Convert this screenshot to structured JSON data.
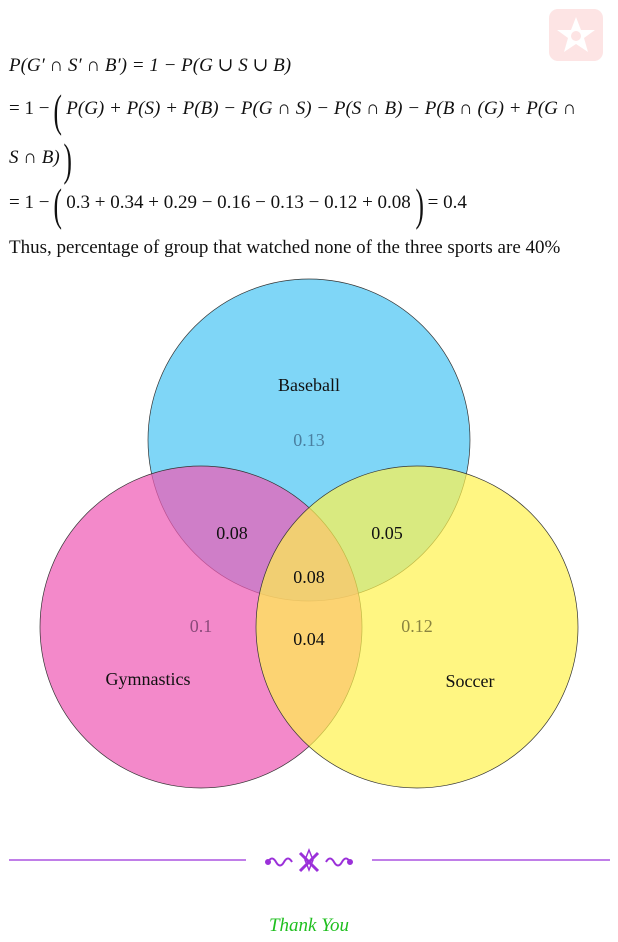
{
  "solution": {
    "line1": "P(G′ ∩ S′ ∩ B′) = 1 − P(G ∪ S ∪ B)",
    "line2_prefix": "= 1 −",
    "line2_body": "P(G) + P(S) + P(B) − P(G ∩ S) − P(S ∩ B) − P(B ∩ (G) + P(G ∩",
    "line3_body": "S ∩ B)",
    "line4_prefix": "= 1 −",
    "line4_body": "0.3 + 0.34 + 0.29 − 0.16 − 0.13 − 0.12 + 0.08",
    "line4_suffix": "= 0.4",
    "conclusion": "Thus, percentage of group that watched none of the three sports are 40%"
  },
  "venn": {
    "sets": [
      {
        "name": "Baseball",
        "color": "#5bcaf5"
      },
      {
        "name": "Gymnastics",
        "color": "#ee5bb5"
      },
      {
        "name": "Soccer",
        "color": "#fff24d"
      }
    ],
    "regions": {
      "baseball_only": "0.13",
      "gymnastics_only": "0.1",
      "soccer_only": "0.12",
      "baseball_gymnastics": "0.08",
      "baseball_soccer": "0.05",
      "gymnastics_soccer": "0.04",
      "all_three": "0.08"
    }
  },
  "footer": {
    "thank_you": "Thank You",
    "ornament_color": "#9b30d9",
    "text_color": "#1fbf1f"
  }
}
